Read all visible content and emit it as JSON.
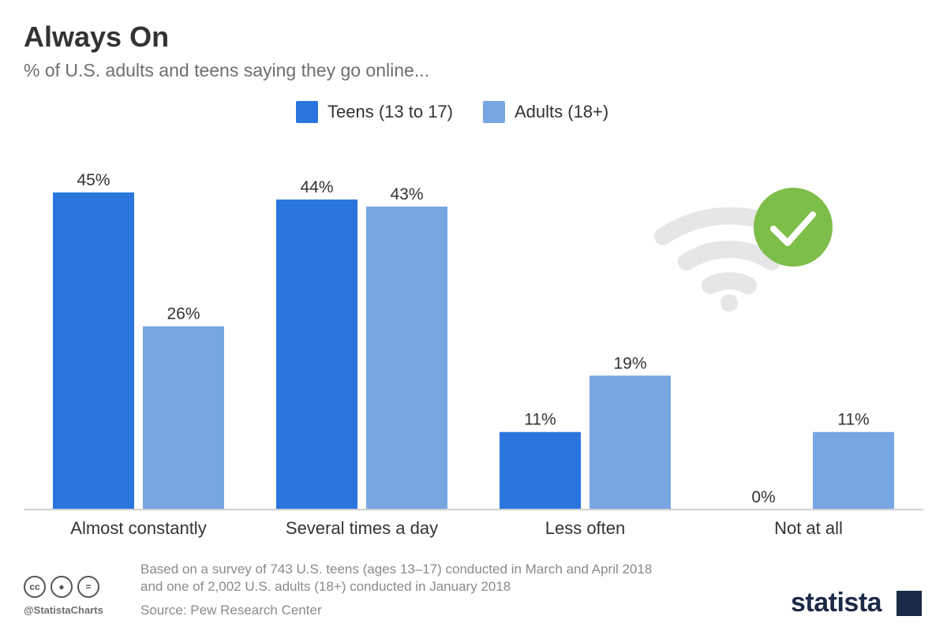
{
  "header": {
    "title": "Always On",
    "subtitle": "% of U.S. adults and teens saying they go online..."
  },
  "legend": [
    {
      "label": "Teens (13 to 17)",
      "color": "#2a76de"
    },
    {
      "label": "Adults (18+)",
      "color": "#78a6e3"
    }
  ],
  "chart_data": {
    "type": "bar",
    "title": "Always On",
    "subtitle": "% of U.S. adults and teens saying they go online...",
    "categories": [
      "Almost constantly",
      "Several times a day",
      "Less often",
      "Not at all"
    ],
    "series": [
      {
        "name": "Teens (13 to 17)",
        "values": [
          45,
          44,
          11,
          0
        ],
        "color": "#2a76de"
      },
      {
        "name": "Adults (18+)",
        "values": [
          26,
          43,
          19,
          11
        ],
        "color": "#78a6e3"
      }
    ],
    "value_suffix": "%",
    "ylim": [
      0,
      45
    ],
    "grid": false,
    "legend_position": "top"
  },
  "footer": {
    "note_line1": "Based on a survey of 743 U.S. teens (ages 13–17) conducted in March and April 2018",
    "note_line2": "and one of 2,002 U.S. adults (18+) conducted in January 2018",
    "source": "Source: Pew Research Center",
    "handle": "@StatistaCharts",
    "brand": "statista"
  },
  "decoration": {
    "icons": [
      "wifi-icon",
      "checkmark-icon"
    ],
    "check_color": "#7dbd4a",
    "wifi_color": "#e6e6e6"
  }
}
